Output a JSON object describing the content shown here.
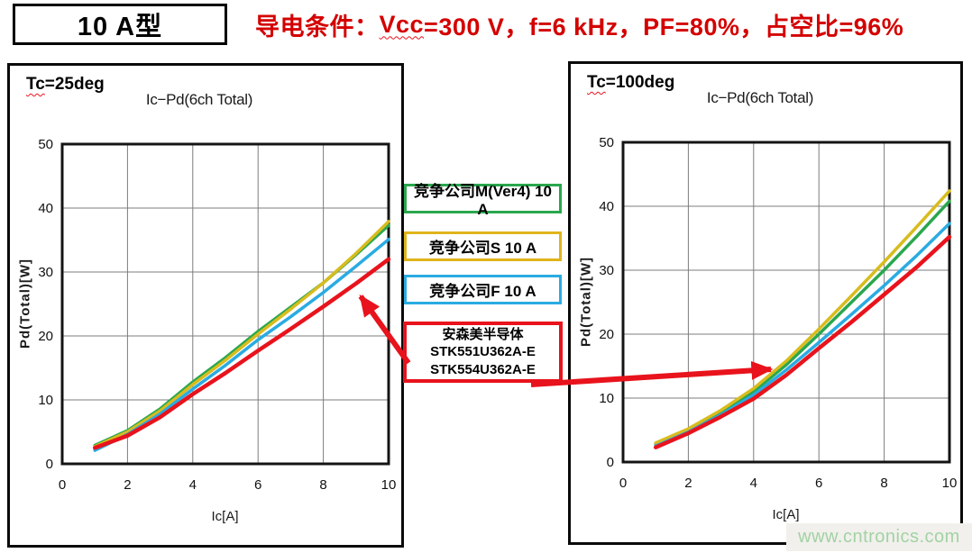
{
  "header": {
    "type_label": "10 A型",
    "condition_prefix": "导电条件：",
    "condition_vcc": "Vcc",
    "condition_rest": "=300 V，f=6 kHz，PF=80%，占空比=96%"
  },
  "legend": {
    "competitor_m": "竞争公司M(Ver4) 10 A",
    "competitor_s": "竞争公司S 10 A",
    "competitor_f": "竞争公司F 10 A",
    "onsemi_lines": [
      "安森美半导体",
      "STK551U362A-E",
      "STK554U362A-E"
    ]
  },
  "watermark": "www.cntronics.com",
  "colors": {
    "red_accent": "#e8131c",
    "green_series": "#2aa74e",
    "yellow_series": "#d8bc1e",
    "cyan_series": "#2aabe2",
    "condition_text": "#d40000"
  },
  "chart_data": [
    {
      "type": "line",
      "panel": "left",
      "tc_prefix": "Tc",
      "tc_rest": "=25deg",
      "title": "Ic−Pd(6ch Total)",
      "xlabel": "Ic[A]",
      "ylabel": "Pd(Total)[W]",
      "xlim": [
        0,
        10
      ],
      "ylim": [
        0,
        50
      ],
      "x_ticks": [
        0,
        2,
        4,
        6,
        8,
        10
      ],
      "y_ticks": [
        0,
        10,
        20,
        30,
        40,
        50
      ],
      "grid": true,
      "x": [
        1,
        2,
        3,
        4,
        5,
        6,
        7,
        8,
        9,
        10
      ],
      "series": [
        {
          "name": "竞争公司M(Ver4) 10 A",
          "color": "#2aa74e",
          "values": [
            2.9,
            5.2,
            8.6,
            12.8,
            16.6,
            20.7,
            24.5,
            28.3,
            32.7,
            37.3
          ]
        },
        {
          "name": "竞争公司S 10 A",
          "color": "#d8bc1e",
          "values": [
            2.7,
            5.0,
            8.3,
            12.4,
            16.2,
            20.3,
            24.2,
            28.3,
            32.9,
            37.9
          ]
        },
        {
          "name": "竞争公司F 10 A",
          "color": "#2aabe2",
          "values": [
            2.1,
            4.6,
            7.8,
            11.7,
            15.4,
            19.4,
            23.0,
            26.8,
            30.9,
            35.1
          ]
        },
        {
          "name": "安森美半导体 STK551U362A-E / STK554U362A-E",
          "color": "#e8131c",
          "values": [
            2.5,
            4.4,
            7.3,
            10.9,
            14.2,
            17.7,
            21.1,
            24.6,
            28.2,
            32.0
          ]
        }
      ]
    },
    {
      "type": "line",
      "panel": "right",
      "tc_prefix": "Tc",
      "tc_rest": "=100deg",
      "title": "Ic−Pd(6ch Total)",
      "xlabel": "Ic[A]",
      "ylabel": "Pd(Total)[W]",
      "xlim": [
        0,
        10
      ],
      "ylim": [
        0,
        50
      ],
      "x_ticks": [
        0,
        2,
        4,
        6,
        8,
        10
      ],
      "y_ticks": [
        0,
        10,
        20,
        30,
        40,
        50
      ],
      "grid": true,
      "x": [
        1,
        2,
        3,
        4,
        5,
        6,
        7,
        8,
        9,
        10
      ],
      "series": [
        {
          "name": "竞争公司M(Ver4) 10 A",
          "color": "#2aa74e",
          "values": [
            2.8,
            5.0,
            7.8,
            11.0,
            15.2,
            20.0,
            25.0,
            30.0,
            35.3,
            40.8
          ]
        },
        {
          "name": "竞争公司S 10 A",
          "color": "#d8bc1e",
          "values": [
            3.0,
            5.2,
            8.1,
            11.5,
            15.8,
            20.8,
            26.0,
            31.3,
            36.8,
            42.4
          ]
        },
        {
          "name": "竞争公司F 10 A",
          "color": "#2aabe2",
          "values": [
            2.5,
            4.7,
            7.4,
            10.5,
            14.4,
            18.7,
            23.1,
            27.6,
            32.3,
            37.3
          ]
        },
        {
          "name": "安森美半导体 STK551U362A-E / STK554U362A-E",
          "color": "#e8131c",
          "values": [
            2.3,
            4.5,
            7.1,
            9.9,
            13.6,
            17.8,
            21.9,
            26.2,
            30.5,
            35.2
          ]
        }
      ]
    }
  ]
}
